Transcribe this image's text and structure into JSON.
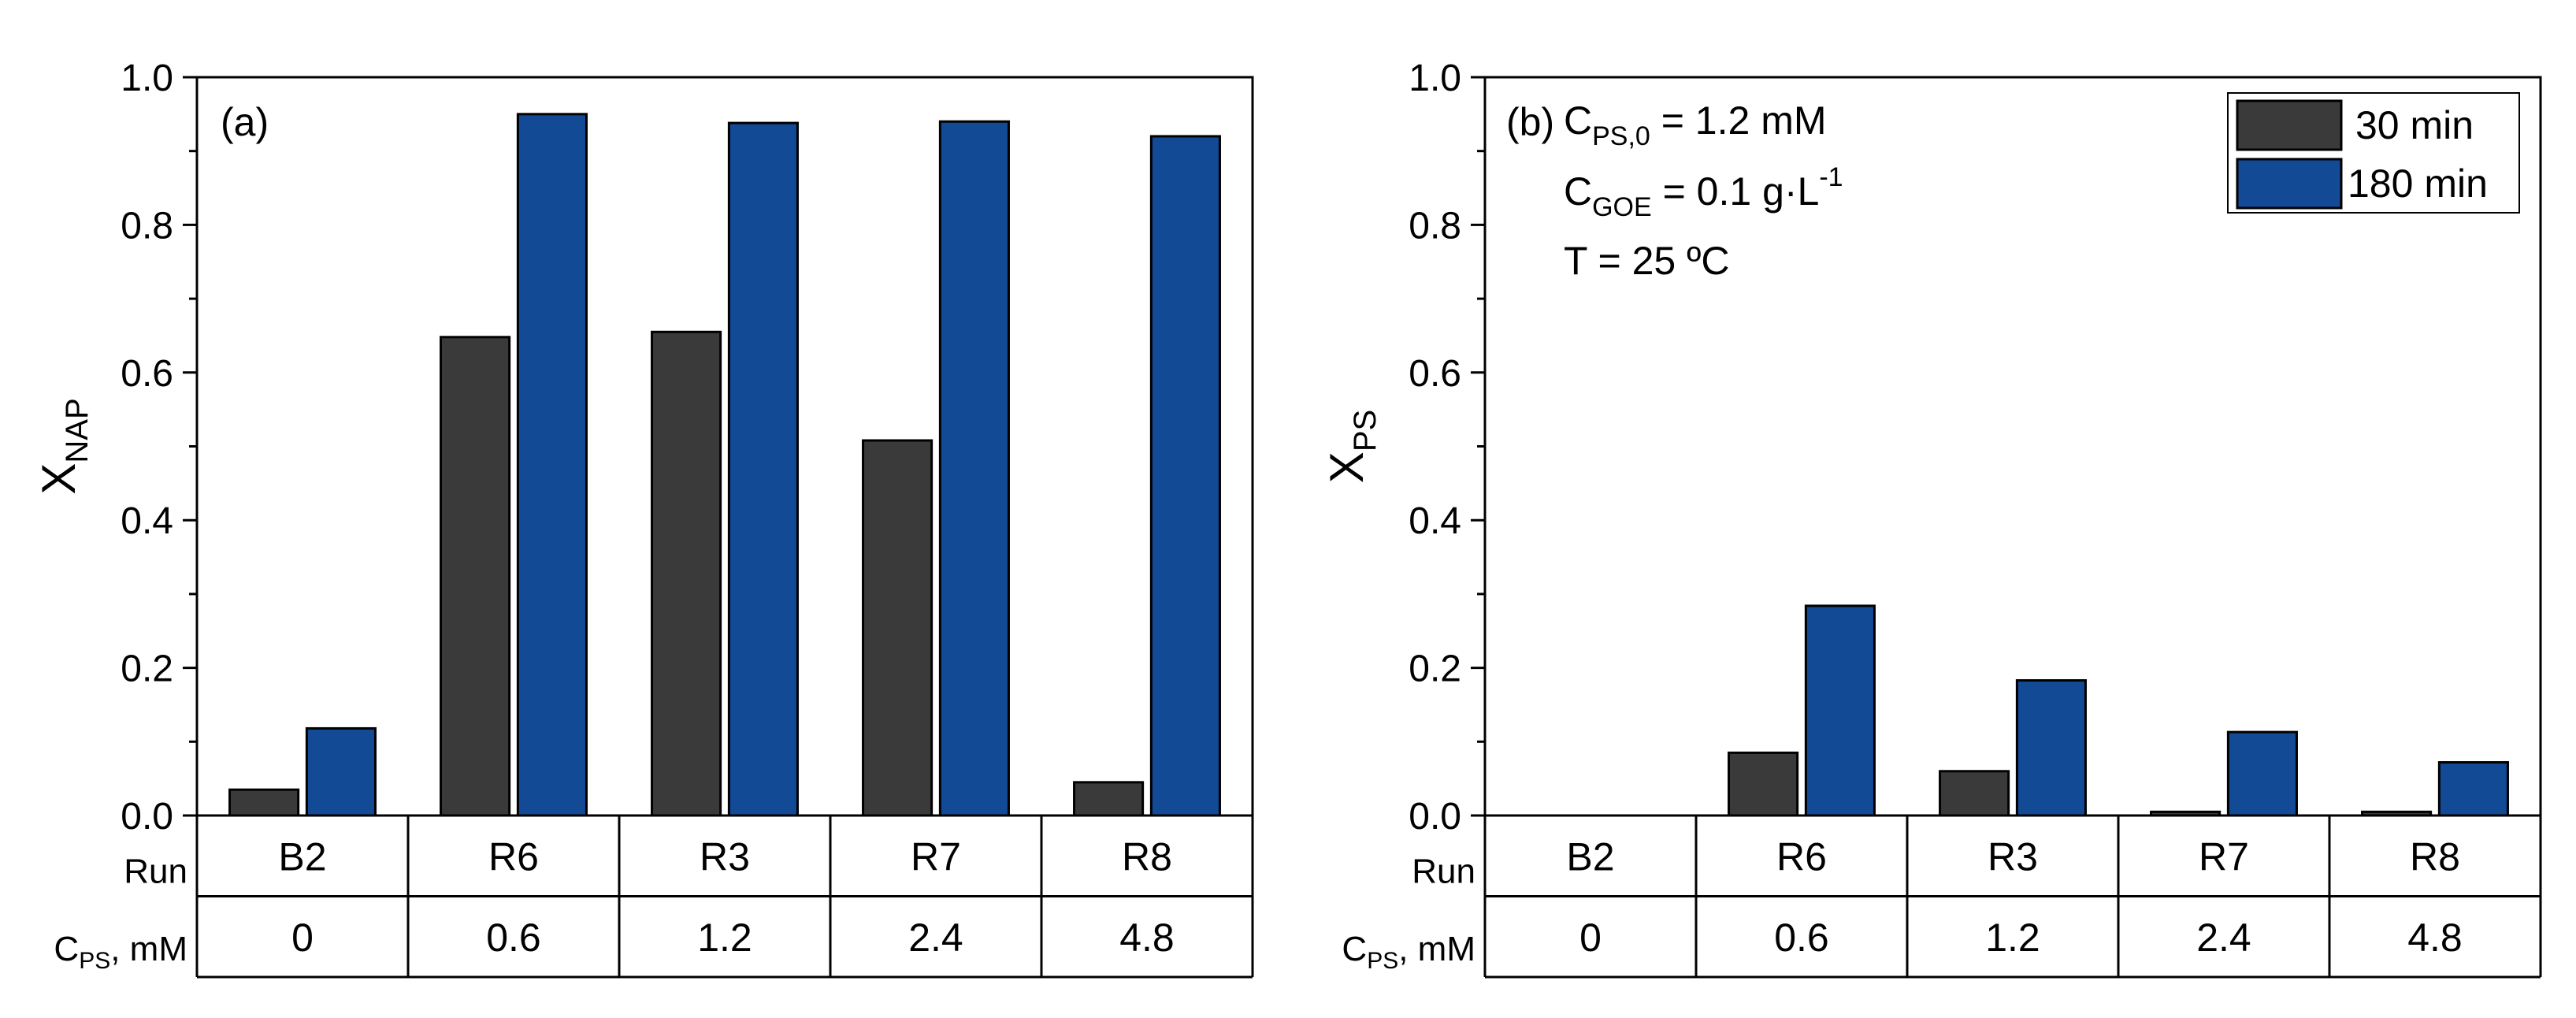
{
  "colors": {
    "series_30": "#3a3a3a",
    "series_180": "#124a96",
    "axis": "#000000"
  },
  "legend": {
    "items": [
      {
        "label": "30 min",
        "color": "#3a3a3a"
      },
      {
        "label": "180 min",
        "color": "#124a96"
      }
    ]
  },
  "table": {
    "run_label": "Run",
    "cps_label_main": "C",
    "cps_label_sub": "PS",
    "cps_label_tail": ", mM"
  },
  "annotations": {
    "line1": {
      "pre": "C",
      "sub": "PS,0",
      "post": " = 1.2 mM"
    },
    "line2": {
      "pre": "C",
      "sub": "GOE",
      "post": " = 0.1 g·L",
      "sup": "-1"
    },
    "line3": {
      "text": "T = 25 ºC"
    }
  },
  "chart_data": [
    {
      "type": "bar",
      "panel": "(a)",
      "ylabel_main": "X",
      "ylabel_sub": "NAP",
      "ylim": [
        0,
        1.0
      ],
      "yticks": [
        "0.0",
        "0.2",
        "0.4",
        "0.6",
        "0.8",
        "1.0"
      ],
      "categories": [
        "B2",
        "R6",
        "R3",
        "R7",
        "R8"
      ],
      "cps_values": [
        "0",
        "0.6",
        "1.2",
        "2.4",
        "4.8"
      ],
      "series": [
        {
          "name": "30 min",
          "values": [
            0.035,
            0.648,
            0.655,
            0.508,
            0.045
          ]
        },
        {
          "name": "180 min",
          "values": [
            0.118,
            0.95,
            0.938,
            0.94,
            0.92
          ]
        }
      ]
    },
    {
      "type": "bar",
      "panel": "(b)",
      "ylabel_main": "X",
      "ylabel_sub": "PS",
      "ylim": [
        0,
        1.0
      ],
      "yticks": [
        "0.0",
        "0.2",
        "0.4",
        "0.6",
        "0.8",
        "1.0"
      ],
      "categories": [
        "B2",
        "R6",
        "R3",
        "R7",
        "R8"
      ],
      "cps_values": [
        "0",
        "0.6",
        "1.2",
        "2.4",
        "4.8"
      ],
      "series": [
        {
          "name": "30 min",
          "values": [
            0.0,
            0.085,
            0.06,
            0.005,
            0.005
          ]
        },
        {
          "name": "180 min",
          "values": [
            0.0,
            0.284,
            0.183,
            0.113,
            0.072
          ]
        }
      ]
    }
  ]
}
